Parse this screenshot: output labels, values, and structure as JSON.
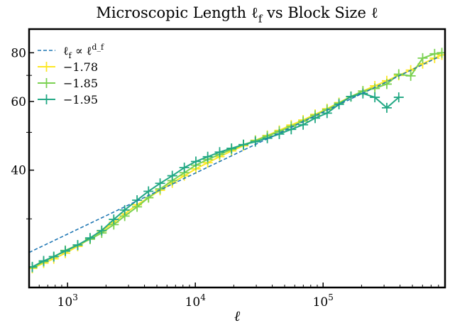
{
  "chart_data": {
    "type": "line",
    "title": "Microscopic Length ℓ_f vs Block Size ℓ",
    "xlabel": "ℓ",
    "ylabel": "",
    "x_scale": "log",
    "y_scale": "log",
    "xlim": [
      500,
      900000
    ],
    "ylim": [
      20,
      92
    ],
    "grid": false,
    "legend_position": "top-left",
    "x_ticks": [
      {
        "value": 1000,
        "base": "10",
        "exp": "3"
      },
      {
        "value": 10000,
        "base": "10",
        "exp": "4"
      },
      {
        "value": 100000,
        "base": "10",
        "exp": "5"
      }
    ],
    "y_ticks": [
      {
        "value": 40,
        "label": "40"
      },
      {
        "value": 60,
        "label": "60"
      },
      {
        "value": 80,
        "label": "80"
      }
    ],
    "y_minor_ticks": [
      30,
      50,
      70
    ],
    "fit": {
      "name": "ℓ_f ∝ ℓ^{d_f}",
      "color": "#1f77b4",
      "x": [
        500,
        800000
      ],
      "y": [
        24.6,
        78
      ]
    },
    "series": [
      {
        "name": "−1.78",
        "color": "#fde725",
        "x": [
          530,
          650,
          780,
          960,
          1200,
          1500,
          1850,
          2300,
          2800,
          3500,
          4300,
          5300,
          6600,
          8200,
          10100,
          12500,
          15500,
          19200,
          23800,
          29500,
          36600,
          45400,
          56300,
          69800,
          86600,
          107400,
          133200,
          165200,
          204900,
          254100,
          315200,
          390900,
          484900,
          601400,
          745900,
          850000
        ],
        "y": [
          22.4,
          23.1,
          23.7,
          24.5,
          25.5,
          26.7,
          27.9,
          29.4,
          30.9,
          32.6,
          34.0,
          35.5,
          37.1,
          38.7,
          40.3,
          41.8,
          43.3,
          44.8,
          46.2,
          47.7,
          49.1,
          50.6,
          52.2,
          53.8,
          55.6,
          57.5,
          59.6,
          61.8,
          63.8,
          65.8,
          67.8,
          70.0,
          72.2,
          75.0,
          77.5,
          79.0
        ]
      },
      {
        "name": "−1.85",
        "color": "#7ad151",
        "x": [
          530,
          650,
          780,
          960,
          1200,
          1500,
          1850,
          2300,
          2800,
          3500,
          4300,
          5300,
          6600,
          8200,
          10100,
          12500,
          15500,
          19200,
          23800,
          29500,
          36600,
          45400,
          56300,
          69800,
          86600,
          107400,
          133200,
          165200,
          204900,
          254100,
          315200,
          390900,
          484900,
          601400,
          745900,
          850000
        ],
        "y": [
          22.5,
          23.3,
          24.0,
          24.9,
          25.7,
          26.6,
          27.6,
          29.0,
          30.5,
          32.2,
          34.0,
          35.8,
          37.6,
          39.4,
          41.2,
          42.6,
          43.9,
          45.2,
          46.5,
          47.6,
          48.9,
          50.3,
          51.8,
          53.4,
          55.3,
          57.2,
          59.4,
          61.7,
          63.8,
          64.8,
          66.5,
          70.5,
          69.8,
          77.5,
          79.5,
          80.0
        ]
      },
      {
        "name": "−1.95",
        "color": "#22a884",
        "x": [
          530,
          650,
          780,
          960,
          1200,
          1500,
          1850,
          2300,
          2800,
          3500,
          4300,
          5300,
          6600,
          8200,
          10100,
          12500,
          15500,
          19200,
          23800,
          29500,
          36600,
          45400,
          56300,
          69800,
          86600,
          107400,
          133200,
          165200,
          204900,
          254100,
          315200,
          390900
        ],
        "y": [
          22.6,
          23.4,
          24.0,
          24.8,
          25.7,
          26.8,
          28.0,
          29.9,
          31.6,
          33.5,
          35.3,
          37.0,
          38.7,
          40.6,
          42.1,
          43.3,
          44.5,
          45.5,
          46.5,
          47.3,
          48.3,
          49.5,
          50.9,
          52.3,
          54.4,
          56.0,
          59.0,
          61.8,
          62.9,
          61.5,
          57.8,
          61.5
        ]
      }
    ]
  }
}
